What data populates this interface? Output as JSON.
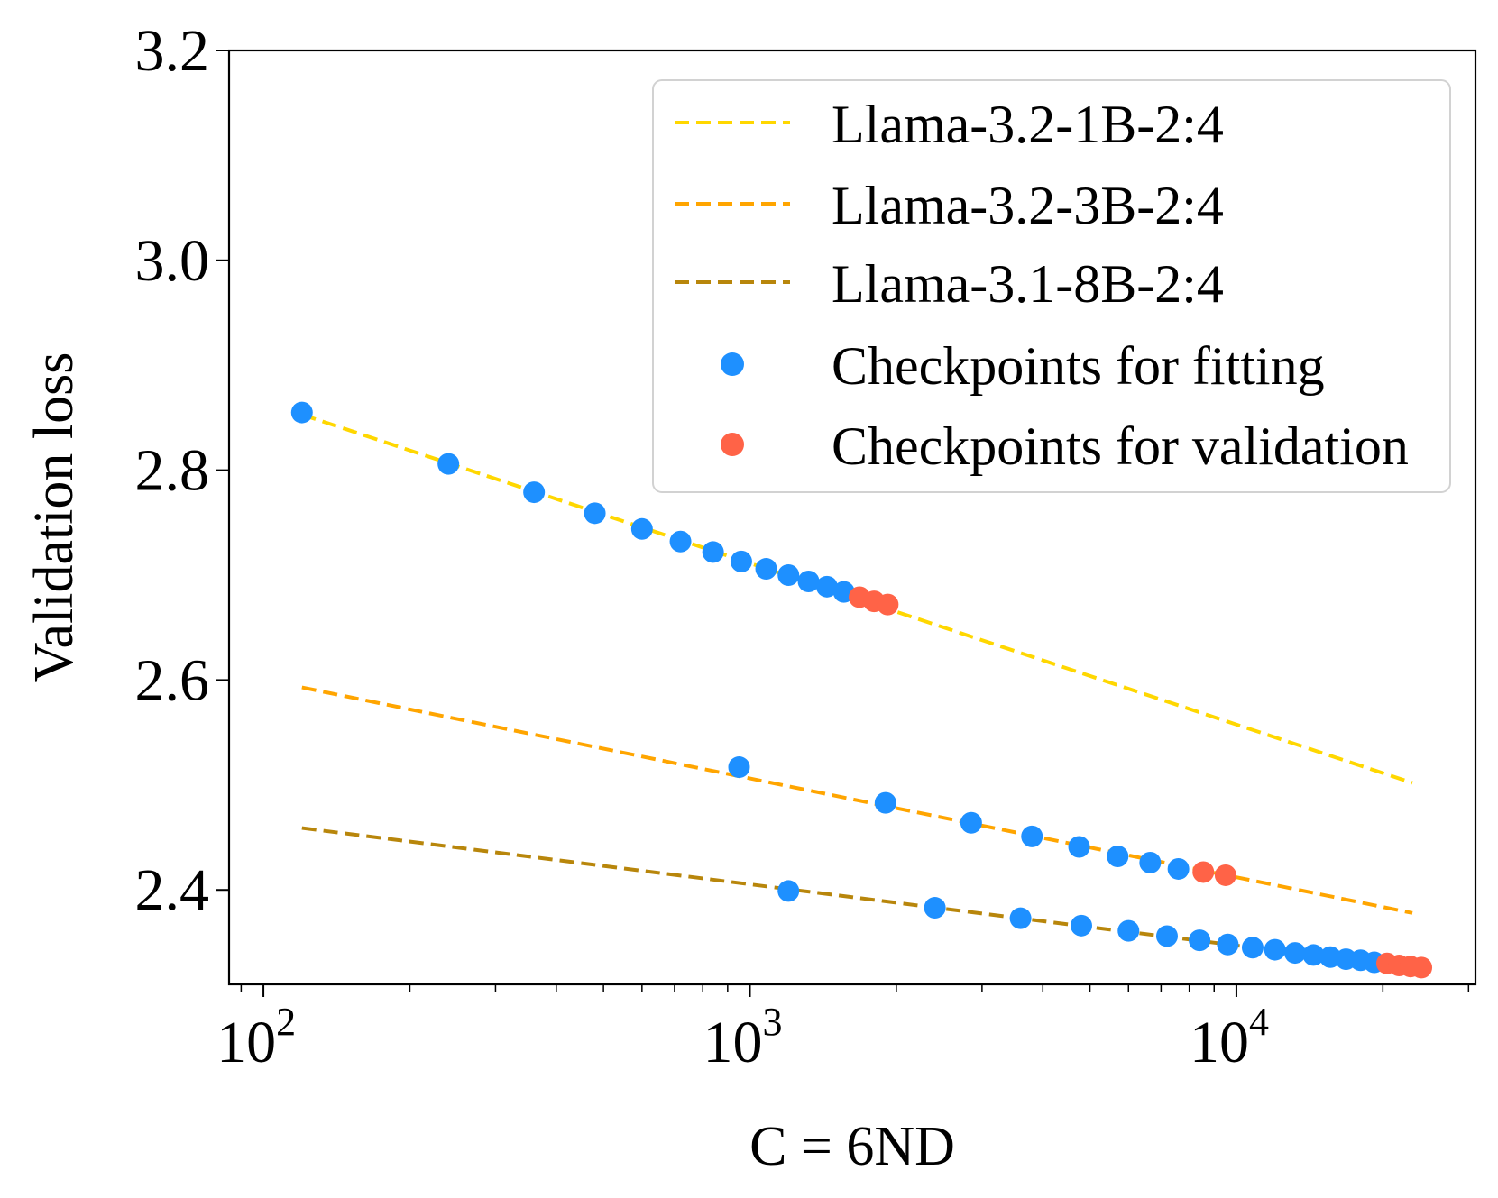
{
  "chart_data": {
    "type": "scatter",
    "xlabel": "C = 6ND",
    "ylabel": "Validation loss",
    "xscale": "log",
    "xlim": [
      85,
      31000
    ],
    "ylim": [
      2.31,
      3.2
    ],
    "xticks_major": [
      {
        "value": 100,
        "base": "10",
        "exp": "2"
      },
      {
        "value": 1000,
        "base": "10",
        "exp": "3"
      },
      {
        "value": 10000,
        "base": "10",
        "exp": "4"
      }
    ],
    "yticks": [
      {
        "value": 2.4,
        "label": "2.4"
      },
      {
        "value": 2.6,
        "label": "2.6"
      },
      {
        "value": 2.8,
        "label": "2.8"
      },
      {
        "value": 3.0,
        "label": "3.0"
      },
      {
        "value": 3.2,
        "label": "3.2"
      }
    ],
    "legend_position": "top-right",
    "lines": [
      {
        "name": "Llama-3.2-1B-2:4",
        "color": "#FFD700",
        "x": [
          120,
          23000
        ],
        "y": [
          2.853,
          2.502
        ]
      },
      {
        "name": "Llama-3.2-3B-2:4",
        "color": "#FFA500",
        "x": [
          120,
          23000
        ],
        "y": [
          2.593,
          2.378
        ]
      },
      {
        "name": "Llama-3.1-8B-2:4",
        "color": "#B8860B",
        "x": [
          120,
          23000
        ],
        "y": [
          2.459,
          2.326
        ]
      }
    ],
    "point_series": [
      {
        "name": "Checkpoints for fitting",
        "color": "#1E90FF",
        "points": [
          [
            120,
            2.855
          ],
          [
            240,
            2.806
          ],
          [
            360,
            2.779
          ],
          [
            480,
            2.759
          ],
          [
            600,
            2.744
          ],
          [
            720,
            2.732
          ],
          [
            840,
            2.722
          ],
          [
            960,
            2.713
          ],
          [
            1080,
            2.706
          ],
          [
            1200,
            2.7
          ],
          [
            1320,
            2.694
          ],
          [
            1440,
            2.689
          ],
          [
            1560,
            2.684
          ],
          [
            950,
            2.517
          ],
          [
            1900,
            2.483
          ],
          [
            2850,
            2.464
          ],
          [
            3800,
            2.451
          ],
          [
            4750,
            2.441
          ],
          [
            5700,
            2.432
          ],
          [
            6650,
            2.426
          ],
          [
            7600,
            2.42
          ],
          [
            1200,
            2.399
          ],
          [
            2400,
            2.383
          ],
          [
            3600,
            2.373
          ],
          [
            4800,
            2.366
          ],
          [
            6000,
            2.361
          ],
          [
            7200,
            2.356
          ],
          [
            8400,
            2.352
          ],
          [
            9600,
            2.348
          ],
          [
            10800,
            2.345
          ],
          [
            12000,
            2.343
          ],
          [
            13200,
            2.34
          ],
          [
            14400,
            2.338
          ],
          [
            15600,
            2.336
          ],
          [
            16800,
            2.334
          ],
          [
            18000,
            2.333
          ],
          [
            19200,
            2.331
          ]
        ]
      },
      {
        "name": "Checkpoints for validation",
        "color": "#FF6347",
        "points": [
          [
            1680,
            2.679
          ],
          [
            1800,
            2.675
          ],
          [
            1920,
            2.672
          ],
          [
            8550,
            2.417
          ],
          [
            9500,
            2.414
          ],
          [
            20400,
            2.33
          ],
          [
            21600,
            2.328
          ],
          [
            22800,
            2.327
          ],
          [
            24000,
            2.326
          ]
        ]
      }
    ]
  }
}
